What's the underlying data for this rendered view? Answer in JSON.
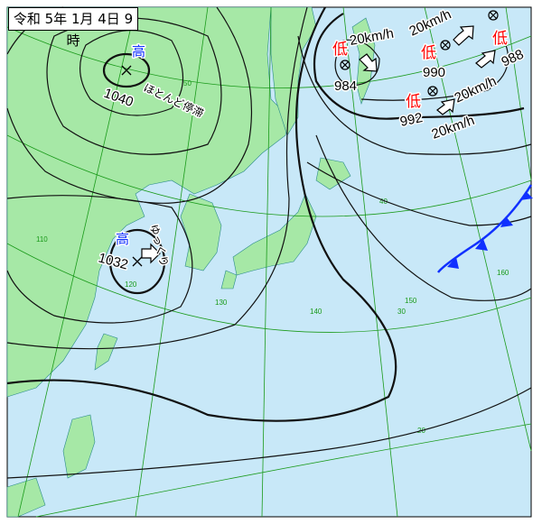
{
  "title": "令和 5年 1月 4日 9時",
  "colors": {
    "land": "#a6e8a6",
    "sea": "#c8e8f8",
    "high": "#1030ff",
    "low": "#ff0000",
    "front": "#1030ff",
    "grid": "#1a9a1a"
  },
  "highs": [
    {
      "symbol": "高",
      "pressure": "1040",
      "motion": "ほとんど停滞"
    },
    {
      "symbol": "高",
      "pressure": "1032",
      "motion": "ゆっくり"
    }
  ],
  "lows": [
    {
      "symbol": "低",
      "pressure": "984",
      "motion": "20km/h"
    },
    {
      "symbol": "低",
      "pressure": "990",
      "motion": "20km/h"
    },
    {
      "symbol": "低",
      "pressure": "992",
      "motion": "20km/h"
    },
    {
      "symbol": "低",
      "pressure": "988",
      "motion": "20km/h"
    }
  ],
  "grid_labels": {
    "lat": [
      "50",
      "40",
      "30",
      "20"
    ],
    "lon": [
      "110",
      "120",
      "130",
      "140",
      "150",
      "160"
    ]
  },
  "front": {
    "type": "cold"
  }
}
